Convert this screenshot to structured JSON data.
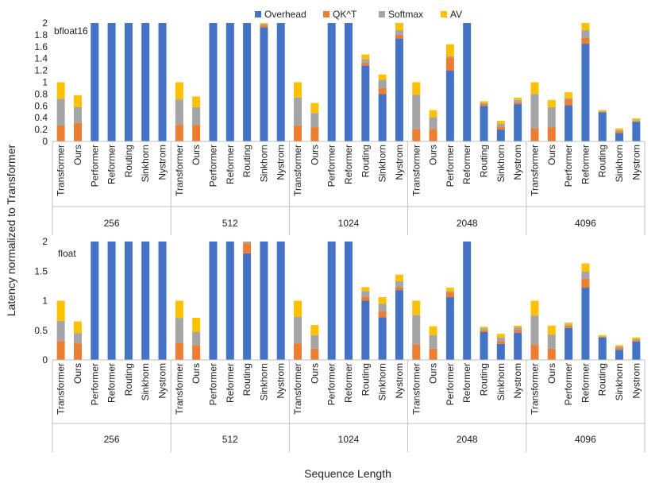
{
  "chart_data": {
    "type": "stacked-bar",
    "ylabel": "Latency normalized to Transformer",
    "xlabel": "Sequence Length",
    "legend": {
      "position": "top",
      "items": [
        {
          "name": "Overhead",
          "color": "#4472C4"
        },
        {
          "name": "QK^T",
          "color": "#ED7D31"
        },
        {
          "name": "Softmax",
          "color": "#A5A5A5"
        },
        {
          "name": "AV",
          "color": "#FFC000"
        }
      ]
    },
    "groups": [
      "256",
      "512",
      "1024",
      "2048",
      "4096"
    ],
    "methods": [
      "Transformer",
      "Ours",
      "Performer",
      "Reformer",
      "Routing",
      "Sinkhorn",
      "Nystrom"
    ],
    "panels": [
      {
        "label": "bfloat16",
        "ylim": [
          0,
          2
        ],
        "yticks": [
          "0",
          "0.2",
          "0.4",
          "0.6",
          "0.8",
          "1",
          "1.2",
          "1.4",
          "1.6",
          "1.8",
          "2"
        ],
        "tickvals": [
          0,
          0.2,
          0.4,
          0.6,
          0.8,
          1,
          1.2,
          1.4,
          1.6,
          1.8,
          2
        ],
        "bars": [
          [
            [
              0,
              0.27,
              0.45,
              0.28
            ],
            [
              0,
              0.31,
              0.27,
              0.2
            ],
            [
              2,
              0,
              0,
              0
            ],
            [
              2,
              0,
              0,
              0
            ],
            [
              2,
              0,
              0,
              0
            ],
            [
              2,
              0,
              0,
              0
            ],
            [
              2,
              0,
              0,
              0
            ]
          ],
          [
            [
              0,
              0.28,
              0.43,
              0.29
            ],
            [
              0,
              0.28,
              0.3,
              0.18
            ],
            [
              2,
              0,
              0,
              0
            ],
            [
              2,
              0,
              0,
              0
            ],
            [
              2,
              0,
              0,
              0
            ],
            [
              1.93,
              0.03,
              0.02,
              0.02
            ],
            [
              2,
              0,
              0,
              0
            ]
          ],
          [
            [
              0,
              0.27,
              0.47,
              0.26
            ],
            [
              0,
              0.24,
              0.24,
              0.17
            ],
            [
              2,
              0,
              0,
              0
            ],
            [
              2,
              0,
              0,
              0
            ],
            [
              1.28,
              0.05,
              0.06,
              0.08
            ],
            [
              0.8,
              0.1,
              0.14,
              0.09
            ],
            [
              1.74,
              0.06,
              0.08,
              0.12
            ]
          ],
          [
            [
              0,
              0.21,
              0.58,
              0.21
            ],
            [
              0,
              0.21,
              0.2,
              0.12
            ],
            [
              1.2,
              0.22,
              0.02,
              0.2
            ],
            [
              2,
              0,
              0,
              0
            ],
            [
              0.6,
              0.03,
              0.02,
              0.03
            ],
            [
              0.2,
              0.05,
              0.05,
              0.05
            ],
            [
              0.63,
              0.03,
              0.04,
              0.04
            ]
          ],
          [
            [
              0,
              0.22,
              0.58,
              0.2
            ],
            [
              0,
              0.24,
              0.34,
              0.12
            ],
            [
              0.61,
              0.1,
              0.02,
              0.1
            ],
            [
              1.65,
              0.1,
              0.13,
              0.12
            ],
            [
              0.49,
              0.01,
              0.01,
              0.02
            ],
            [
              0.14,
              0.03,
              0.02,
              0.03
            ],
            [
              0.33,
              0.01,
              0.02,
              0.03
            ]
          ]
        ]
      },
      {
        "label": "float",
        "ylim": [
          0,
          2
        ],
        "yticks": [
          "0",
          "0.5",
          "1",
          "1.5",
          "2"
        ],
        "tickvals": [
          0,
          0.5,
          1,
          1.5,
          2
        ],
        "bars": [
          [
            [
              0,
              0.32,
              0.34,
              0.34
            ],
            [
              0,
              0.28,
              0.17,
              0.2
            ],
            [
              2,
              0,
              0,
              0
            ],
            [
              2,
              0,
              0,
              0
            ],
            [
              2,
              0,
              0,
              0
            ],
            [
              2,
              0,
              0,
              0
            ],
            [
              2,
              0,
              0,
              0
            ]
          ],
          [
            [
              0,
              0.29,
              0.42,
              0.29
            ],
            [
              0,
              0.25,
              0.22,
              0.24
            ],
            [
              2,
              0,
              0,
              0
            ],
            [
              2,
              0,
              0,
              0
            ],
            [
              1.8,
              0.17,
              0.03,
              0
            ],
            [
              2,
              0,
              0,
              0
            ],
            [
              2,
              0,
              0,
              0
            ]
          ],
          [
            [
              0,
              0.28,
              0.45,
              0.27
            ],
            [
              0,
              0.19,
              0.23,
              0.17
            ],
            [
              2,
              0,
              0,
              0
            ],
            [
              2,
              0,
              0,
              0
            ],
            [
              1.0,
              0.07,
              0.09,
              0.07
            ],
            [
              0.72,
              0.11,
              0.12,
              0.11
            ],
            [
              1.18,
              0.05,
              0.1,
              0.11
            ]
          ],
          [
            [
              0,
              0.26,
              0.5,
              0.24
            ],
            [
              0,
              0.19,
              0.23,
              0.15
            ],
            [
              1.06,
              0.08,
              0.02,
              0.06
            ],
            [
              2,
              0,
              0,
              0
            ],
            [
              0.47,
              0.03,
              0.03,
              0.03
            ],
            [
              0.27,
              0.05,
              0.06,
              0.06
            ],
            [
              0.46,
              0.05,
              0.04,
              0.03
            ]
          ],
          [
            [
              0,
              0.26,
              0.49,
              0.25
            ],
            [
              0,
              0.19,
              0.24,
              0.15
            ],
            [
              0.54,
              0.04,
              0.02,
              0.03
            ],
            [
              1.22,
              0.15,
              0.12,
              0.14
            ],
            [
              0.38,
              0.01,
              0.01,
              0.02
            ],
            [
              0.17,
              0.03,
              0.03,
              0.02
            ],
            [
              0.31,
              0.02,
              0.02,
              0.03
            ]
          ]
        ]
      }
    ]
  }
}
